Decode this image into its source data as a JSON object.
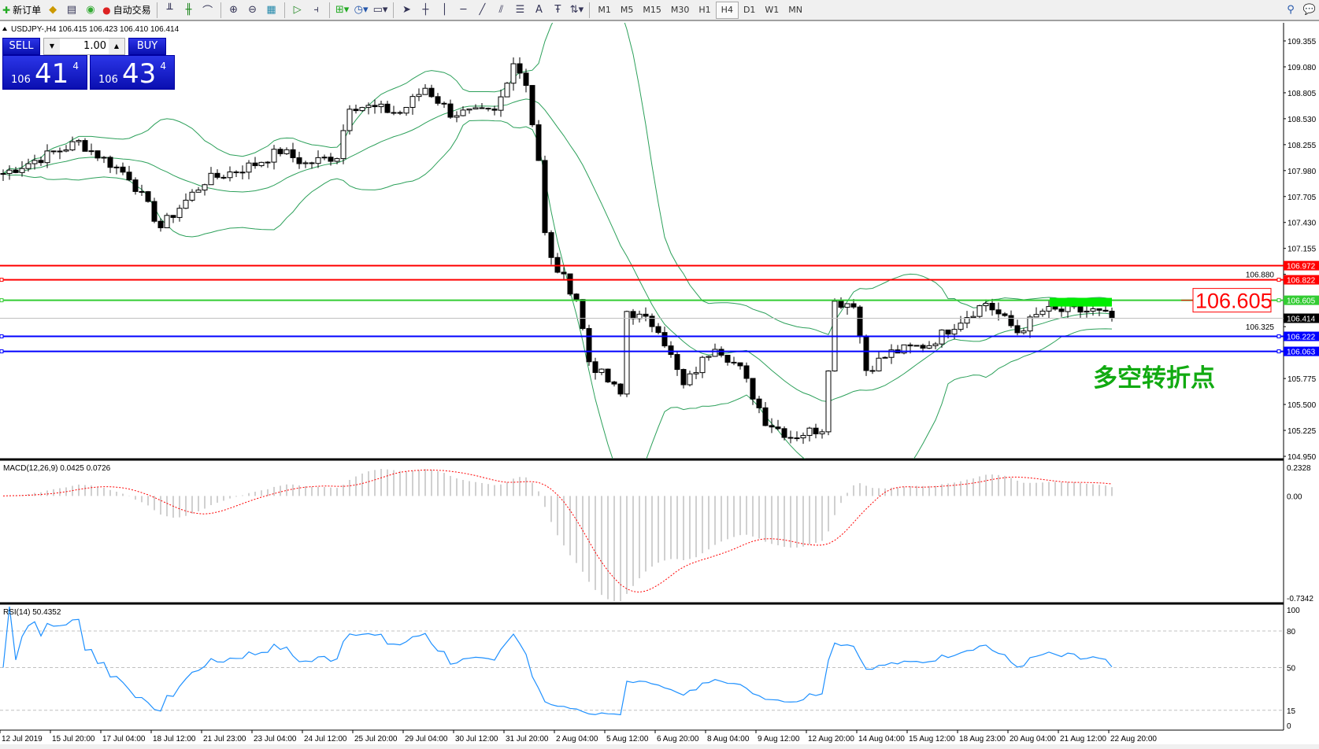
{
  "toolbar": {
    "new_order": "新订单",
    "auto_trading": "自动交易",
    "timeframes": [
      "M1",
      "M5",
      "M15",
      "M30",
      "H1",
      "H4",
      "D1",
      "W1",
      "MN"
    ],
    "active_timeframe": "H4"
  },
  "chart": {
    "header": "USDJPY-,H4  106.415 106.423 106.410 106.414",
    "symbol": "USDJPY-",
    "timeframe": "H4",
    "price_axis": [
      "109.355",
      "109.080",
      "108.805",
      "108.530",
      "108.255",
      "107.980",
      "107.705",
      "107.430",
      "107.155",
      "106.880",
      "106.325",
      "105.775",
      "105.500",
      "105.225",
      "104.950"
    ],
    "price_range": [
      104.95,
      109.355
    ],
    "levels": [
      {
        "price": "106.972",
        "color": "#ff0000"
      },
      {
        "price": "106.822",
        "color": "#ff0000",
        "marker": true
      },
      {
        "price": "106.605",
        "color": "#33cc33",
        "marker": true
      },
      {
        "price": "106.222",
        "color": "#0000ff",
        "marker": true
      },
      {
        "price": "106.063",
        "color": "#0000ff",
        "marker": true
      }
    ],
    "current_price": "106.414",
    "callout_price": "106.605",
    "annotation": "多空转折点",
    "annotation_color": "#11aa11",
    "close_waypoints": [
      [
        0,
        107.95
      ],
      [
        12,
        108.28
      ],
      [
        20,
        107.92
      ],
      [
        25,
        107.38
      ],
      [
        32,
        107.87
      ],
      [
        40,
        108.05
      ],
      [
        44,
        108.19
      ],
      [
        48,
        108.05
      ],
      [
        53,
        108.14
      ],
      [
        55,
        108.68
      ],
      [
        60,
        108.63
      ],
      [
        63,
        108.59
      ],
      [
        67,
        108.86
      ],
      [
        71,
        108.59
      ],
      [
        78,
        108.59
      ],
      [
        80,
        108.9
      ],
      [
        81,
        109.17
      ],
      [
        83,
        108.9
      ],
      [
        85,
        108.1
      ],
      [
        86,
        107.3
      ],
      [
        87,
        107.03
      ],
      [
        91,
        106.63
      ],
      [
        93,
        105.96
      ],
      [
        98,
        105.6
      ],
      [
        99,
        106.49
      ],
      [
        104,
        106.32
      ],
      [
        108,
        105.69
      ],
      [
        113,
        106.14
      ],
      [
        117,
        105.87
      ],
      [
        121,
        105.33
      ],
      [
        125,
        105.16
      ],
      [
        130,
        105.25
      ],
      [
        132,
        106.58
      ],
      [
        135,
        106.58
      ],
      [
        137,
        105.87
      ],
      [
        141,
        106.05
      ],
      [
        147,
        106.14
      ],
      [
        152,
        106.4
      ],
      [
        156,
        106.58
      ],
      [
        161,
        106.27
      ],
      [
        165,
        106.49
      ],
      [
        173,
        106.49
      ],
      [
        176,
        106.414
      ]
    ],
    "time_axis": [
      "12 Jul 2019",
      "15 Jul 20:00",
      "17 Jul 04:00",
      "18 Jul 12:00",
      "21 Jul 23:00",
      "23 Jul 04:00",
      "24 Jul 12:00",
      "25 Jul 20:00",
      "29 Jul 04:00",
      "30 Jul 12:00",
      "31 Jul 20:00",
      "2 Aug 04:00",
      "5 Aug 12:00",
      "6 Aug 20:00",
      "8 Aug 04:00",
      "9 Aug 12:00",
      "12 Aug 20:00",
      "14 Aug 04:00",
      "15 Aug 12:00",
      "18 Aug 23:00",
      "20 Aug 04:00",
      "21 Aug 12:00",
      "22 Aug 20:00"
    ]
  },
  "trade_panel": {
    "sell_label": "SELL",
    "buy_label": "BUY",
    "lot": "1.00",
    "sell_small": "106",
    "sell_big": "41",
    "sell_pip": "4",
    "buy_small": "106",
    "buy_big": "43",
    "buy_pip": "4"
  },
  "macd": {
    "label": "MACD(12,26,9) 0.0425 0.0726",
    "axis": [
      "0.2328",
      "0.00",
      "-0.7342"
    ],
    "range": [
      -0.7342,
      0.2328
    ]
  },
  "rsi": {
    "label": "RSI(14) 50.4352",
    "axis": [
      "100",
      "80",
      "50",
      "15",
      "0"
    ],
    "line_color": "#1e90ff"
  }
}
